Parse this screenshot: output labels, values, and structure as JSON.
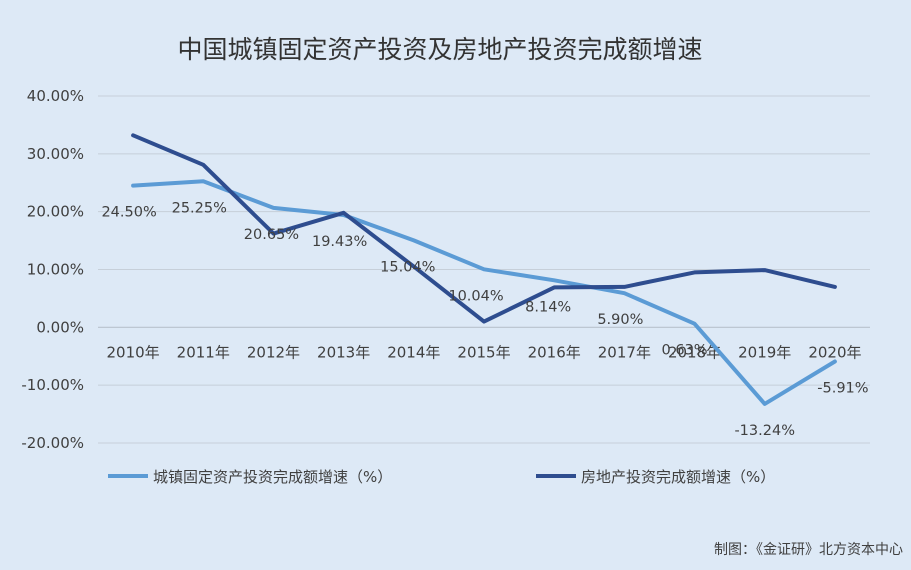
{
  "chart_data": {
    "type": "line",
    "title": "中国城镇固定资产投资及房地产投资完成额增速",
    "categories": [
      "2010年",
      "2011年",
      "2012年",
      "2013年",
      "2014年",
      "2015年",
      "2016年",
      "2017年",
      "2018年",
      "2019年",
      "2020年"
    ],
    "y_tick_labels": [
      "40.00%",
      "30.00%",
      "20.00%",
      "10.00%",
      "0.00%",
      "-10.00%",
      "-20.00%"
    ],
    "ylim": [
      -20,
      40
    ],
    "grid": true,
    "legend_position": "bottom",
    "series": [
      {
        "name": "城镇固定资产投资完成额增速（%）",
        "color": "#5b9bd5",
        "values": [
          24.5,
          25.25,
          20.65,
          19.43,
          15.04,
          10.04,
          8.14,
          5.9,
          0.63,
          -13.24,
          -5.91
        ],
        "data_labels": [
          "24.50%",
          "25.25%",
          "20.65%",
          "19.43%",
          "15.04%",
          "10.04%",
          "8.14%",
          "5.90%",
          "0.63%",
          "-13.24%",
          "-5.91%"
        ]
      },
      {
        "name": "房地产投资完成额增速（%）",
        "color": "#2e4d8f",
        "values": [
          33.2,
          28.1,
          16.2,
          19.8,
          10.5,
          1.0,
          6.9,
          7.0,
          9.5,
          9.9,
          7.0
        ]
      }
    ],
    "credit": "制图：《金证研》北方资本中心"
  }
}
